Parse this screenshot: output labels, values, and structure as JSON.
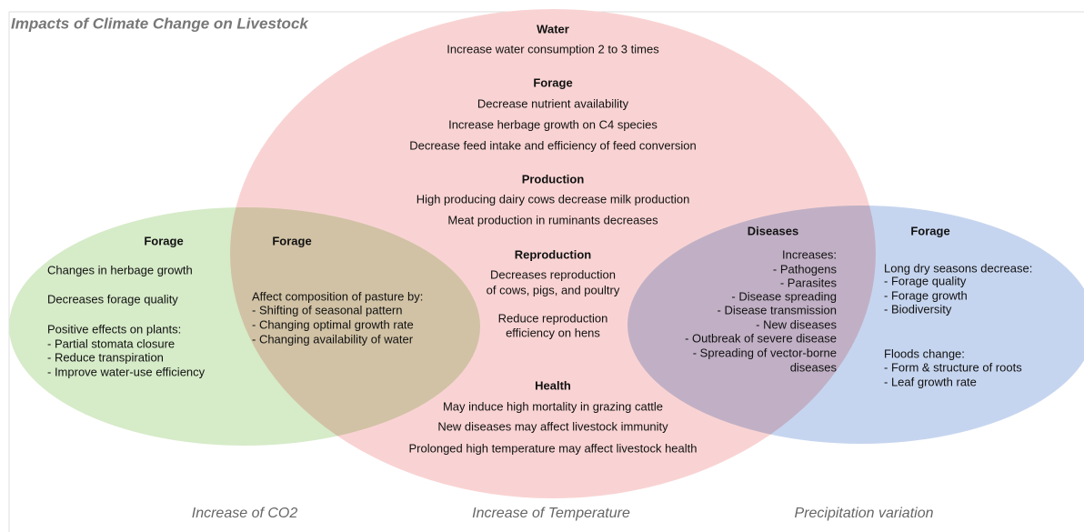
{
  "title": "Impacts of Climate Change on Livestock",
  "factors": [
    "Increase of CO2",
    "Increase of Temperature",
    "Precipitation variation"
  ],
  "regions": [
    {
      "heading": "Water",
      "lines": [
        "Increase water consumption 2 to 3 times"
      ]
    },
    {
      "heading": "Forage",
      "lines": [
        "Decrease nutrient availability",
        "Increase herbage growth on C4 species",
        "Decrease feed intake and efficiency of feed conversion"
      ]
    },
    {
      "heading": "Production",
      "lines": [
        "High producing dairy cows decrease milk production",
        "Meat production in ruminants decreases"
      ]
    },
    {
      "heading": "Reproduction",
      "lines": [
        "Decreases reproduction",
        "of cows, pigs, and poultry",
        "Reduce reproduction",
        "efficiency on hens"
      ]
    },
    {
      "heading": "Health",
      "lines": [
        "May induce high mortality in grazing cattle",
        "New diseases may affect livestock immunity",
        "Prolonged high temperature may affect livestock health"
      ]
    },
    {
      "heading": "Forage",
      "lines": [
        "Changes in herbage growth",
        "Decreases forage quality",
        "Positive effects on plants:",
        "- Partial stomata closure",
        "- Reduce transpiration",
        "- Improve water-use efficiency"
      ]
    },
    {
      "heading": "Forage",
      "lines": [
        "Affect composition of pasture by:",
        "- Shifting of seasonal pattern",
        "- Changing optimal growth rate",
        "- Changing availability of water"
      ]
    },
    {
      "heading": "Diseases",
      "lines": [
        "Increases:",
        "- Pathogens",
        "- Parasites",
        "- Disease spreading",
        "- Disease transmission",
        "- New diseases",
        "- Outbreak of severe disease",
        "- Spreading of vector-borne",
        "diseases"
      ]
    },
    {
      "heading": "Forage",
      "lines": [
        "Long dry seasons decrease:",
        "- Forage quality",
        "- Forage growth",
        "- Biodiversity",
        "Floods change:",
        "- Form & structure of roots",
        "- Leaf growth rate"
      ]
    }
  ]
}
